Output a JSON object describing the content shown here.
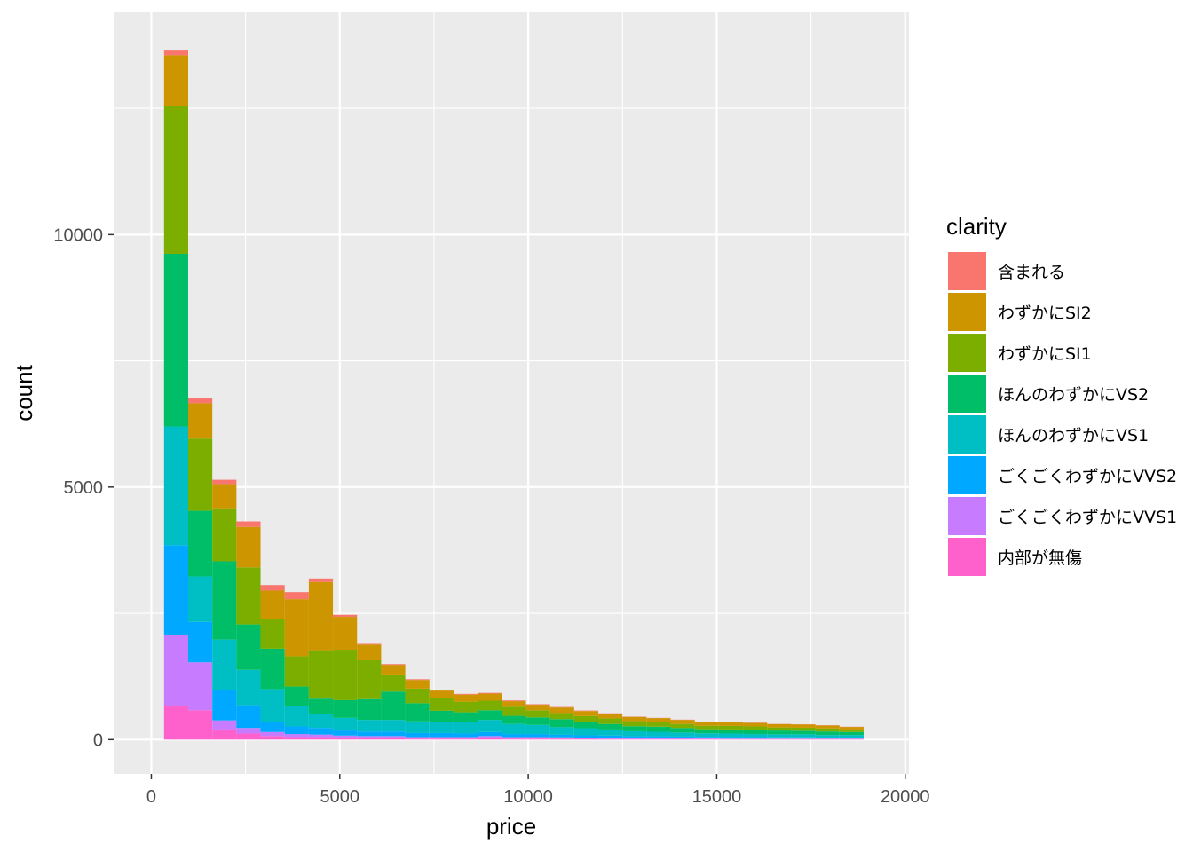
{
  "chart_data": {
    "type": "bar",
    "subtype": "stacked-histogram",
    "xlabel": "price",
    "ylabel": "count",
    "xlim": [
      -1000,
      20100
    ],
    "ylim": [
      -680,
      14400
    ],
    "x_ticks": [
      0,
      5000,
      10000,
      15000,
      20000
    ],
    "y_ticks": [
      0,
      5000,
      10000
    ],
    "grid": true,
    "legend": {
      "title": "clarity",
      "position": "right"
    },
    "bin_width": 640,
    "bin_centers": [
      658,
      1298,
      1938,
      2578,
      3218,
      3858,
      4498,
      5138,
      5778,
      6418,
      7058,
      7698,
      8338,
      8978,
      9618,
      10258,
      10898,
      11538,
      12178,
      12818,
      13458,
      14098,
      14738,
      15378,
      16018,
      16658,
      17298,
      17938,
      18578
    ],
    "series": [
      {
        "name": "内部が無傷",
        "color": "#FF61CC",
        "values": [
          660,
          580,
          200,
          120,
          70,
          50,
          50,
          40,
          30,
          30,
          20,
          20,
          20,
          30,
          20,
          20,
          20,
          15,
          10,
          10,
          10,
          10,
          10,
          10,
          10,
          10,
          10,
          10,
          10
        ]
      },
      {
        "name": "ごくごくわずかにVVS1",
        "color": "#C77CFF",
        "values": [
          1420,
          950,
          180,
          110,
          80,
          60,
          50,
          40,
          40,
          40,
          30,
          30,
          30,
          40,
          30,
          30,
          25,
          20,
          20,
          15,
          15,
          15,
          15,
          10,
          10,
          10,
          10,
          10,
          10
        ]
      },
      {
        "name": "ごくごくわずかにVVS2",
        "color": "#00A9FF",
        "values": [
          1770,
          800,
          600,
          450,
          200,
          150,
          130,
          100,
          90,
          90,
          80,
          80,
          70,
          80,
          60,
          60,
          50,
          50,
          50,
          40,
          40,
          35,
          30,
          30,
          30,
          25,
          25,
          20,
          20
        ]
      },
      {
        "name": "ほんのわずかにVS1",
        "color": "#00BFC4",
        "values": [
          2350,
          900,
          1000,
          700,
          650,
          400,
          280,
          250,
          230,
          230,
          230,
          220,
          220,
          240,
          200,
          180,
          150,
          140,
          120,
          100,
          90,
          80,
          70,
          70,
          60,
          60,
          60,
          50,
          50
        ]
      },
      {
        "name": "ほんのわずかにVS2",
        "color": "#00BE67",
        "values": [
          3420,
          1300,
          1550,
          900,
          800,
          390,
          300,
          350,
          410,
          560,
          360,
          220,
          200,
          190,
          160,
          150,
          160,
          130,
          110,
          100,
          100,
          90,
          80,
          80,
          80,
          75,
          70,
          70,
          60
        ]
      },
      {
        "name": "わずかにSI1",
        "color": "#7CAE00",
        "values": [
          2930,
          1430,
          1050,
          1130,
          580,
          600,
          960,
          1000,
          770,
          340,
          290,
          250,
          210,
          190,
          180,
          140,
          120,
          110,
          110,
          100,
          90,
          80,
          70,
          70,
          70,
          60,
          60,
          60,
          50
        ]
      },
      {
        "name": "わずかにSI2",
        "color": "#CD9600",
        "values": [
          1000,
          700,
          480,
          800,
          570,
          1130,
          1350,
          650,
          310,
          190,
          170,
          150,
          140,
          140,
          110,
          110,
          110,
          100,
          90,
          85,
          80,
          80,
          75,
          70,
          70,
          65,
          65,
          60,
          50
        ]
      },
      {
        "name": "含まれる",
        "color": "#F8766D",
        "values": [
          110,
          110,
          85,
          110,
          110,
          140,
          70,
          40,
          15,
          15,
          15,
          15,
          15,
          15,
          15,
          10,
          10,
          10,
          10,
          5,
          5,
          5,
          5,
          5,
          5,
          5,
          5,
          5,
          5
        ]
      }
    ]
  }
}
